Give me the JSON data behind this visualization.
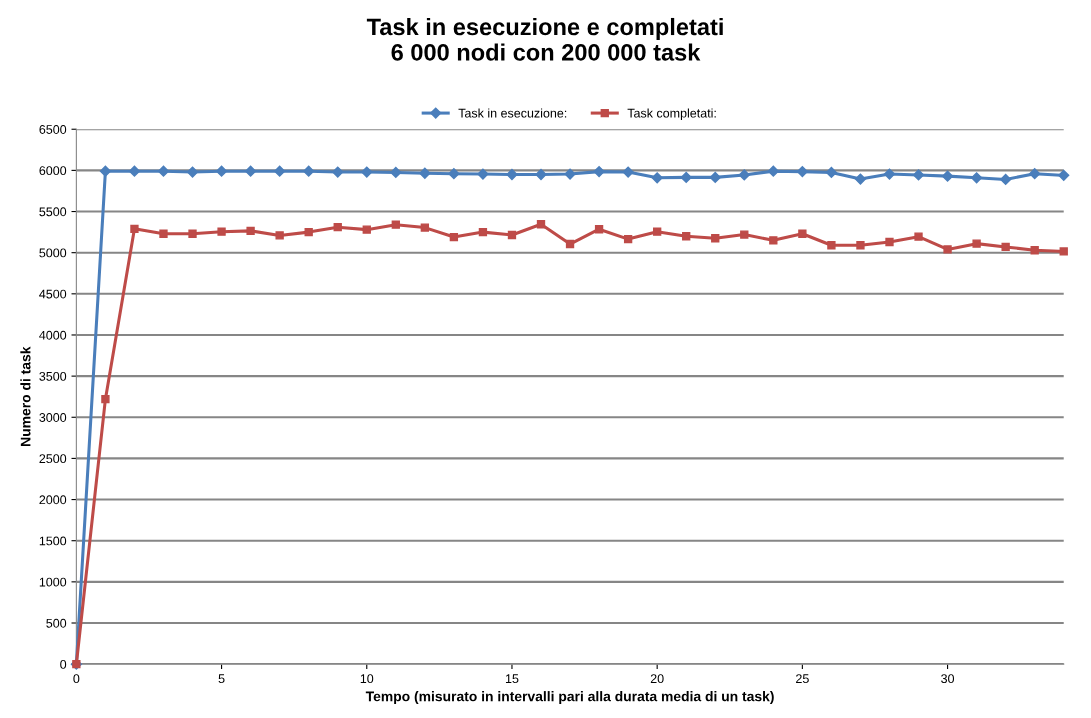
{
  "chart_data": {
    "type": "line",
    "title": "Task in esecuzione e completati\n6 000 nodi con 200 000 task",
    "xlabel": "Tempo (misurato in intervalli pari alla durata media di un task)",
    "ylabel": "Numero di task",
    "x": [
      0,
      1,
      2,
      3,
      4,
      5,
      6,
      7,
      8,
      9,
      10,
      11,
      12,
      13,
      14,
      15,
      16,
      17,
      18,
      19,
      20,
      21,
      22,
      23,
      24,
      25,
      26,
      27,
      28,
      29,
      30,
      31,
      32,
      33,
      34
    ],
    "series": [
      {
        "name": "Task in esecuzione:",
        "color": "#4a7ebb",
        "marker": "diamond",
        "values": [
          0,
          5990,
          5990,
          5990,
          5980,
          5990,
          5990,
          5990,
          5990,
          5980,
          5980,
          5975,
          5965,
          5960,
          5955,
          5950,
          5950,
          5955,
          5985,
          5980,
          5910,
          5915,
          5915,
          5945,
          5990,
          5985,
          5975,
          5895,
          5955,
          5945,
          5930,
          5910,
          5890,
          5960,
          5940
        ]
      },
      {
        "name": "Task completati:",
        "color": "#be4b48",
        "marker": "square",
        "values": [
          0,
          3220,
          5290,
          5230,
          5230,
          5255,
          5265,
          5210,
          5250,
          5310,
          5280,
          5340,
          5305,
          5190,
          5250,
          5215,
          5345,
          5105,
          5285,
          5165,
          5255,
          5200,
          5175,
          5220,
          5150,
          5230,
          5090,
          5090,
          5130,
          5195,
          5040,
          5110,
          5070,
          5030,
          5015
        ]
      }
    ],
    "xlim": [
      0,
      34
    ],
    "xticks": [
      0,
      5,
      10,
      15,
      20,
      25,
      30
    ],
    "ylim": [
      0,
      6500
    ],
    "yticks": [
      0,
      500,
      1000,
      1500,
      2000,
      2500,
      3000,
      3500,
      4000,
      4500,
      5000,
      5500,
      6000,
      6500
    ],
    "grid": "y",
    "legend": "top"
  }
}
